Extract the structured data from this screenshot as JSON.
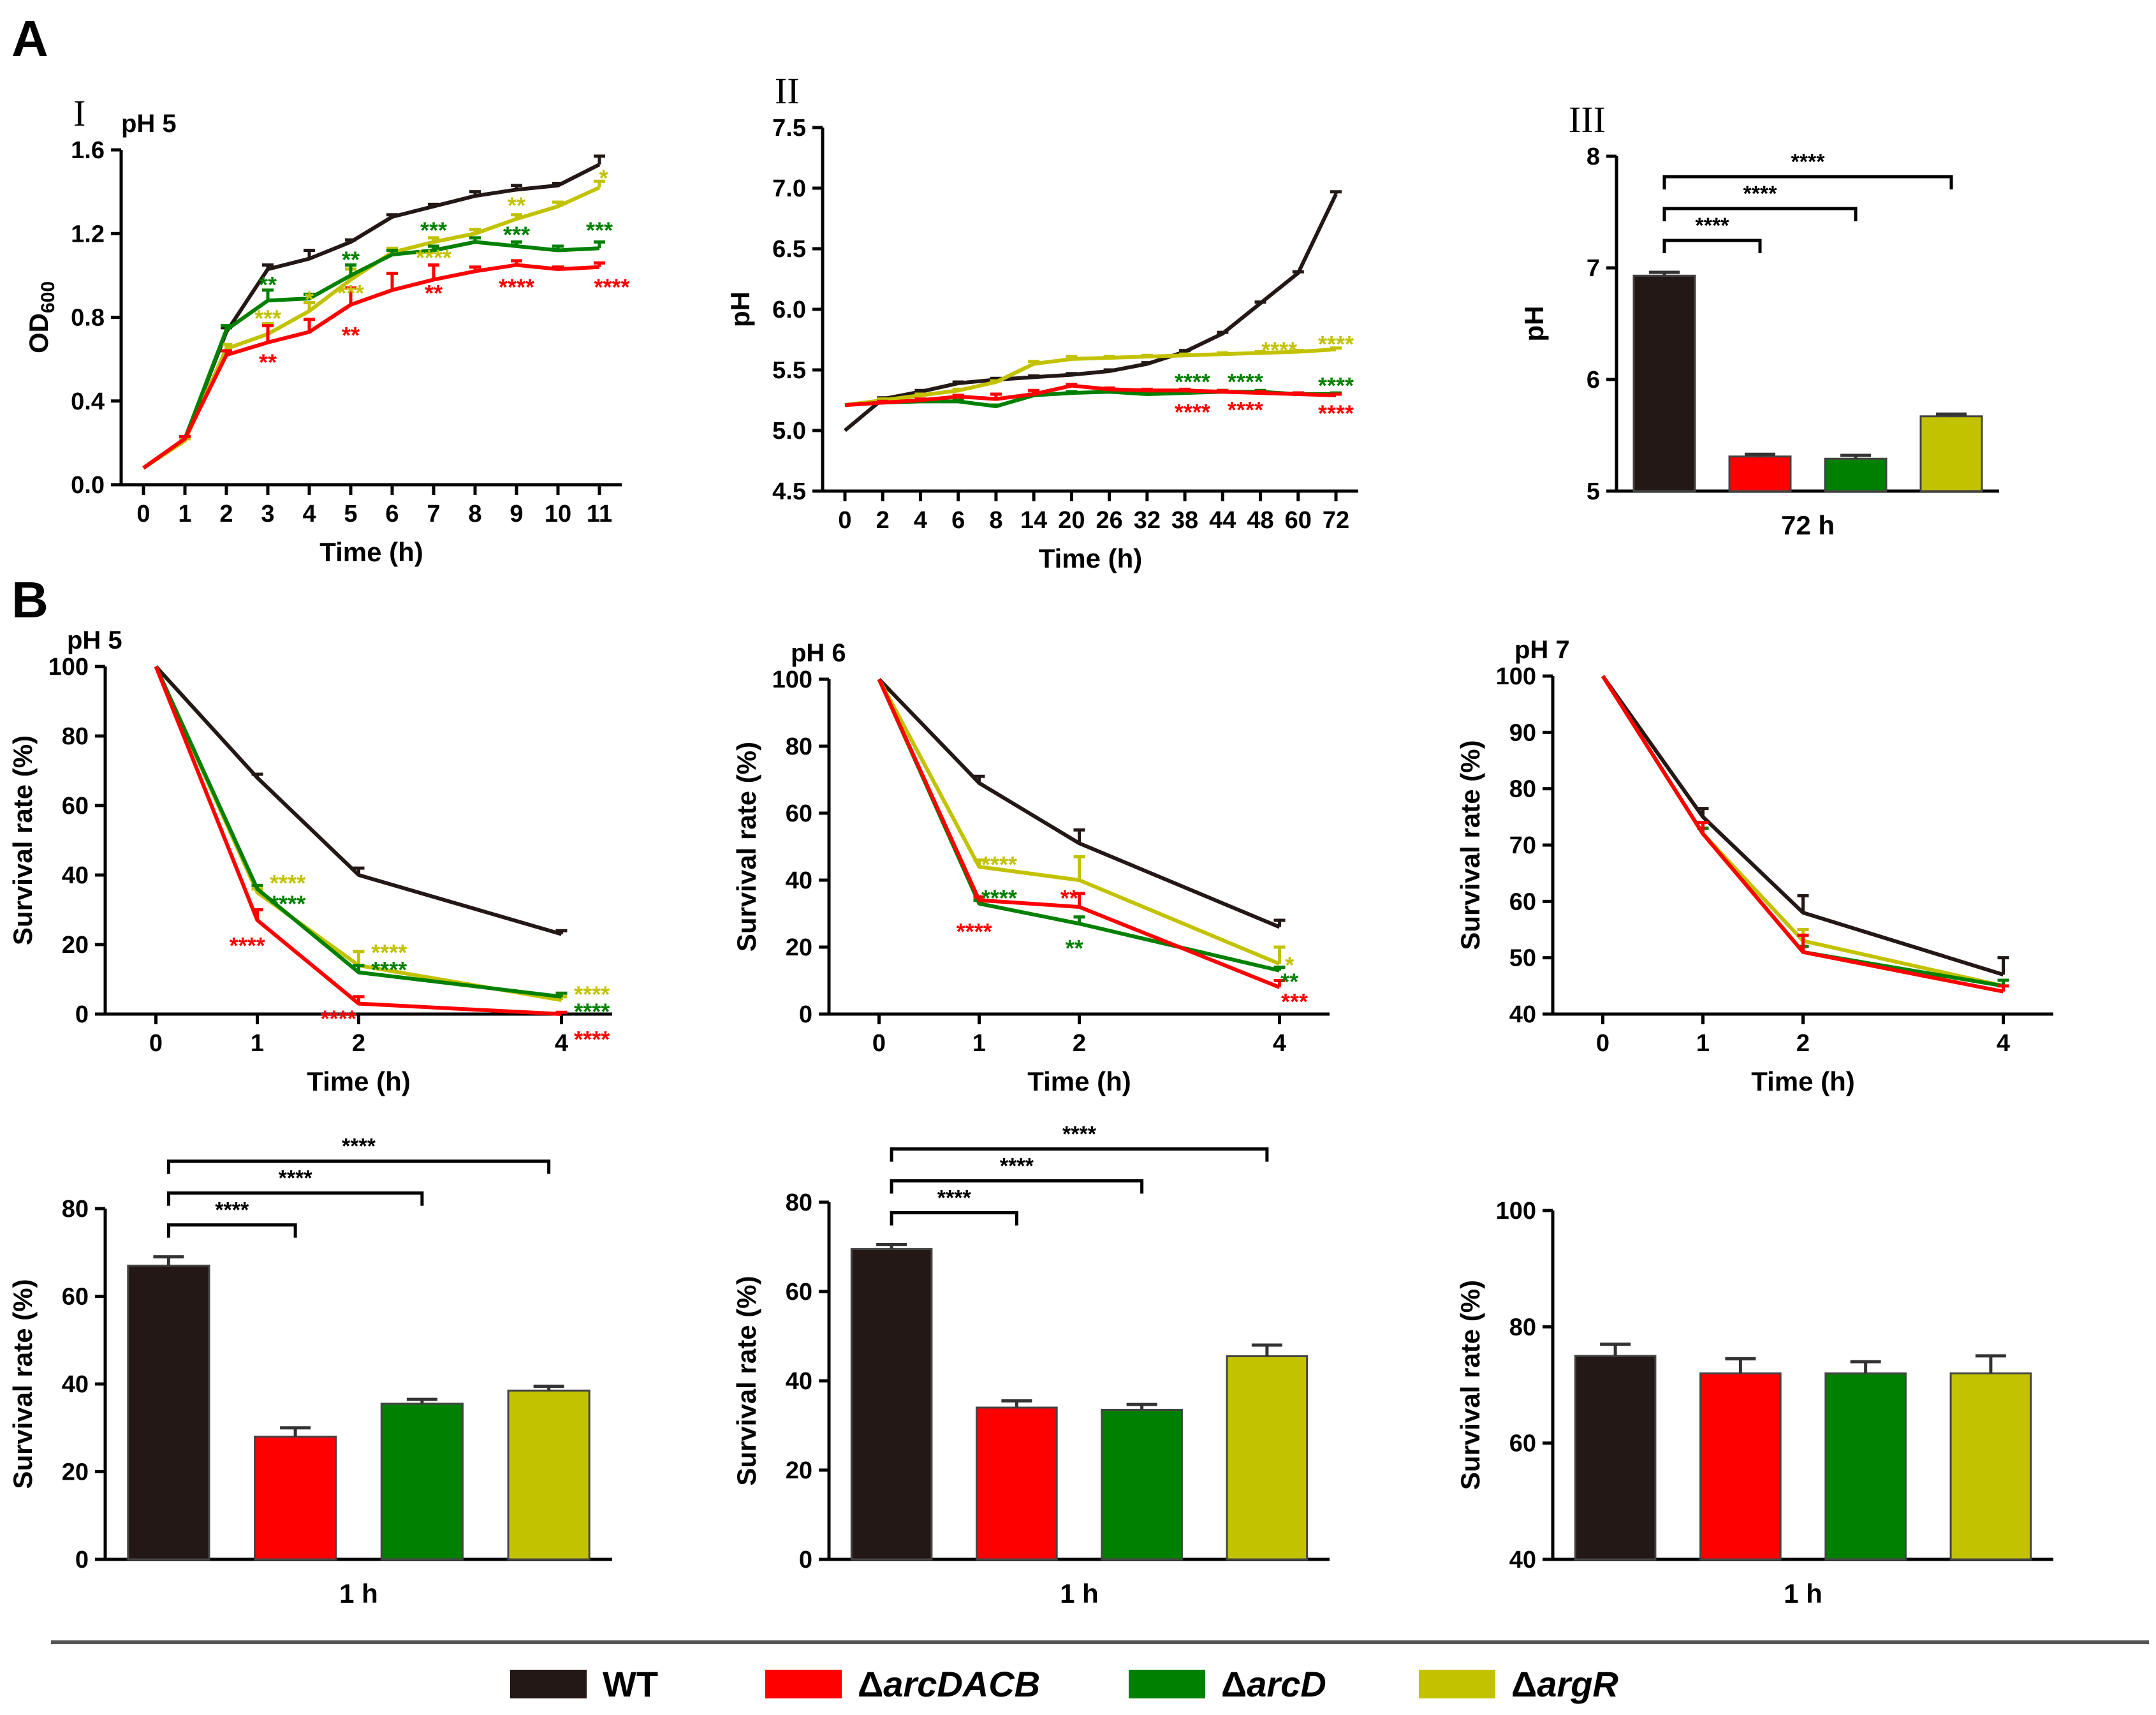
{
  "colors": {
    "WT": "#231815",
    "arcDACB": "#ff0000",
    "arcD": "#008000",
    "argR": "#c2c200"
  },
  "legend": {
    "items": [
      {
        "key": "WT",
        "prefix": "",
        "name": "WT",
        "italic": false
      },
      {
        "key": "arcDACB",
        "prefix": "Δ",
        "name": "arcDACB",
        "italic": true
      },
      {
        "key": "arcD",
        "prefix": "Δ",
        "name": "arcD",
        "italic": true
      },
      {
        "key": "argR",
        "prefix": "Δ",
        "name": "argR",
        "italic": true
      }
    ]
  },
  "panel_labels": {
    "A": "A",
    "B": "B"
  },
  "chart_data": [
    {
      "type": "line",
      "id": "A1",
      "roman": "I",
      "title": "pH 5",
      "xlabel": "Time (h)",
      "ylabel": "OD",
      "ylabel_sub": "600",
      "categories": [
        "0",
        "1",
        "2",
        "3",
        "4",
        "5",
        "6",
        "7",
        "8",
        "9",
        "10",
        "11"
      ],
      "ylim": [
        0,
        1.6
      ],
      "yticks": [
        "0.0",
        "0.4",
        "0.8",
        "1.2",
        "1.6"
      ],
      "series": [
        {
          "name": "WT",
          "values": [
            0.08,
            0.22,
            0.73,
            1.03,
            1.08,
            1.16,
            1.28,
            1.33,
            1.38,
            1.41,
            1.43,
            1.53
          ],
          "err": [
            0,
            0.01,
            0.02,
            0.02,
            0.04,
            0.01,
            0.01,
            0.01,
            0.02,
            0.02,
            0.01,
            0.04
          ]
        },
        {
          "name": "argR",
          "values": [
            0.08,
            0.21,
            0.65,
            0.72,
            0.83,
            0.98,
            1.11,
            1.16,
            1.2,
            1.27,
            1.33,
            1.42
          ],
          "err": [
            0,
            0.01,
            0.02,
            0.05,
            0.04,
            0.05,
            0.02,
            0.02,
            0.02,
            0.02,
            0.02,
            0.03
          ]
        },
        {
          "name": "arcD",
          "values": [
            0.08,
            0.22,
            0.74,
            0.88,
            0.89,
            1.0,
            1.1,
            1.12,
            1.16,
            1.14,
            1.12,
            1.13
          ],
          "err": [
            0,
            0.01,
            0.02,
            0.05,
            0.02,
            0.05,
            0.02,
            0.02,
            0.02,
            0.02,
            0.02,
            0.03
          ]
        },
        {
          "name": "arcDACB",
          "values": [
            0.08,
            0.22,
            0.62,
            0.68,
            0.73,
            0.86,
            0.93,
            0.98,
            1.02,
            1.05,
            1.03,
            1.04
          ],
          "err": [
            0,
            0.01,
            0.02,
            0.08,
            0.06,
            0.08,
            0.08,
            0.07,
            0.02,
            0.02,
            0.01,
            0.02
          ]
        }
      ],
      "annotations": [
        {
          "text": "**",
          "series": "arcD",
          "x": 3,
          "y": 0.96
        },
        {
          "text": "***",
          "series": "argR",
          "x": 3,
          "y": 0.8
        },
        {
          "text": "**",
          "series": "arcDACB",
          "x": 3,
          "y": 0.59
        },
        {
          "text": "*",
          "series": "argR",
          "x": 4,
          "y": 0.89
        },
        {
          "text": "**",
          "series": "arcD",
          "x": 5,
          "y": 1.08
        },
        {
          "text": "***",
          "series": "argR",
          "x": 5,
          "y": 0.92
        },
        {
          "text": "**",
          "series": "arcDACB",
          "x": 5,
          "y": 0.72
        },
        {
          "text": "***",
          "series": "arcD",
          "x": 7,
          "y": 1.22
        },
        {
          "text": "****",
          "series": "argR",
          "x": 7,
          "y": 1.09
        },
        {
          "text": "**",
          "series": "arcDACB",
          "x": 7,
          "y": 0.92
        },
        {
          "text": "**",
          "series": "argR",
          "x": 9,
          "y": 1.34
        },
        {
          "text": "***",
          "series": "arcD",
          "x": 9,
          "y": 1.2
        },
        {
          "text": "****",
          "series": "arcDACB",
          "x": 9,
          "y": 0.95
        },
        {
          "text": "*",
          "series": "argR",
          "x": 11.1,
          "y": 1.47
        },
        {
          "text": "***",
          "series": "arcD",
          "x": 11,
          "y": 1.22
        },
        {
          "text": "****",
          "series": "arcDACB",
          "x": 11.3,
          "y": 0.95
        }
      ]
    },
    {
      "type": "line",
      "id": "A2",
      "roman": "II",
      "title": "",
      "xlabel": "Time (h)",
      "ylabel": "pH",
      "categories": [
        "0",
        "2",
        "4",
        "6",
        "8",
        "14",
        "20",
        "26",
        "32",
        "38",
        "44",
        "48",
        "60",
        "72"
      ],
      "ylim": [
        4.5,
        7.5
      ],
      "yticks": [
        "4.5",
        "5.0",
        "5.5",
        "6.0",
        "6.5",
        "7.0",
        "7.5"
      ],
      "series": [
        {
          "name": "WT",
          "values": [
            5.0,
            5.26,
            5.32,
            5.39,
            5.42,
            5.44,
            5.46,
            5.49,
            5.55,
            5.65,
            5.8,
            6.05,
            6.3,
            6.95
          ],
          "err": [
            0,
            0.01,
            0.01,
            0.01,
            0.01,
            0.01,
            0.01,
            0.01,
            0.01,
            0.01,
            0.01,
            0.01,
            0.01,
            0.02
          ]
        },
        {
          "name": "argR",
          "values": [
            5.21,
            5.25,
            5.29,
            5.33,
            5.4,
            5.55,
            5.59,
            5.6,
            5.61,
            5.62,
            5.63,
            5.64,
            5.65,
            5.67
          ],
          "err": [
            0,
            0.01,
            0.01,
            0.01,
            0.01,
            0.02,
            0.02,
            0.01,
            0.01,
            0.01,
            0.01,
            0.01,
            0.01,
            0.01
          ]
        },
        {
          "name": "arcD",
          "values": [
            5.21,
            5.23,
            5.24,
            5.24,
            5.2,
            5.29,
            5.31,
            5.32,
            5.3,
            5.31,
            5.32,
            5.32,
            5.3,
            5.3
          ],
          "err": [
            0,
            0.01,
            0.01,
            0.01,
            0.01,
            0.01,
            0.01,
            0.01,
            0.01,
            0.01,
            0.01,
            0.01,
            0.01,
            0.01
          ]
        },
        {
          "name": "arcDACB",
          "values": [
            5.21,
            5.23,
            5.25,
            5.28,
            5.26,
            5.3,
            5.37,
            5.34,
            5.33,
            5.33,
            5.32,
            5.31,
            5.3,
            5.29
          ],
          "err": [
            0,
            0.01,
            0.01,
            0.01,
            0.04,
            0.03,
            0.01,
            0.01,
            0.01,
            0.01,
            0.01,
            0.01,
            0.01,
            0.01
          ]
        }
      ],
      "annotations": [
        {
          "text": "****",
          "series": "argR",
          "x": 11.5,
          "y": 5.67
        },
        {
          "text": "****",
          "series": "argR",
          "x": 13,
          "y": 5.72
        },
        {
          "text": "****",
          "series": "arcD",
          "x": 9.2,
          "y": 5.41
        },
        {
          "text": "****",
          "series": "arcD",
          "x": 10.6,
          "y": 5.41
        },
        {
          "text": "****",
          "series": "arcD",
          "x": 13,
          "y": 5.38
        },
        {
          "text": "****",
          "series": "arcDACB",
          "x": 9.2,
          "y": 5.16
        },
        {
          "text": "****",
          "series": "arcDACB",
          "x": 10.6,
          "y": 5.18
        },
        {
          "text": "****",
          "series": "arcDACB",
          "x": 13,
          "y": 5.15
        }
      ]
    },
    {
      "type": "bar",
      "id": "A3",
      "roman": "III",
      "title": "",
      "xlabel": "72 h",
      "ylabel": "pH",
      "ylim": [
        5,
        8
      ],
      "yticks": [
        "5",
        "6",
        "7",
        "8"
      ],
      "series": [
        {
          "name": "WT",
          "value": 6.93,
          "err": 0.03
        },
        {
          "name": "arcDACB",
          "value": 5.31,
          "err": 0.02
        },
        {
          "name": "arcD",
          "value": 5.29,
          "err": 0.03
        },
        {
          "name": "argR",
          "value": 5.67,
          "err": 0.02
        }
      ],
      "brackets": [
        {
          "from": 0,
          "to": 1,
          "text": "****",
          "level": 0
        },
        {
          "from": 0,
          "to": 2,
          "text": "****",
          "level": 1
        },
        {
          "from": 0,
          "to": 3,
          "text": "****",
          "level": 2
        }
      ]
    },
    {
      "type": "line",
      "id": "B1",
      "title": "pH 5",
      "xlabel": "Time (h)",
      "ylabel": "Survival rate (%)",
      "x": [
        0,
        1,
        2,
        4
      ],
      "categories": [
        "0",
        "1",
        "2",
        "4"
      ],
      "ylim": [
        0,
        100
      ],
      "yticks": [
        "0",
        "20",
        "40",
        "60",
        "80",
        "100"
      ],
      "series": [
        {
          "name": "WT",
          "values": [
            100,
            68,
            40,
            23
          ],
          "err": [
            0,
            1,
            2,
            1
          ]
        },
        {
          "name": "argR",
          "values": [
            100,
            35,
            14,
            4
          ],
          "err": [
            0,
            1,
            4,
            1
          ]
        },
        {
          "name": "arcD",
          "values": [
            100,
            36,
            12,
            5
          ],
          "err": [
            0,
            1,
            2,
            1
          ]
        },
        {
          "name": "arcDACB",
          "values": [
            100,
            27,
            3,
            0
          ],
          "err": [
            0,
            3,
            2,
            0.5
          ]
        }
      ],
      "annotations": [
        {
          "text": "****",
          "series": "argR",
          "x": 1.3,
          "y": 38
        },
        {
          "text": "****",
          "series": "arcD",
          "x": 1.3,
          "y": 32
        },
        {
          "text": "****",
          "series": "arcDACB",
          "x": 0.9,
          "y": 20
        },
        {
          "text": "****",
          "series": "argR",
          "x": 2.3,
          "y": 18
        },
        {
          "text": "****",
          "series": "arcD",
          "x": 2.3,
          "y": 13
        },
        {
          "text": "****",
          "series": "arcDACB",
          "x": 1.8,
          "y": -1
        },
        {
          "text": "****",
          "series": "argR",
          "x": 4.3,
          "y": 6
        },
        {
          "text": "****",
          "series": "arcD",
          "x": 4.3,
          "y": 1
        },
        {
          "text": "****",
          "series": "arcDACB",
          "x": 4.3,
          "y": -7
        }
      ]
    },
    {
      "type": "line",
      "id": "B2",
      "title": "pH 6",
      "xlabel": "Time (h)",
      "ylabel": "Survival rate (%)",
      "x": [
        0,
        1,
        2,
        4
      ],
      "categories": [
        "0",
        "1",
        "2",
        "4"
      ],
      "ylim": [
        0,
        100
      ],
      "yticks": [
        "0",
        "20",
        "40",
        "60",
        "80",
        "100"
      ],
      "series": [
        {
          "name": "WT",
          "values": [
            100,
            69,
            51,
            26
          ],
          "err": [
            0,
            2,
            4,
            2
          ]
        },
        {
          "name": "argR",
          "values": [
            100,
            44,
            40,
            15
          ],
          "err": [
            0,
            2,
            7,
            5
          ]
        },
        {
          "name": "arcD",
          "values": [
            100,
            33,
            27,
            13
          ],
          "err": [
            0,
            1,
            2,
            1
          ]
        },
        {
          "name": "arcDACB",
          "values": [
            100,
            34,
            32,
            8
          ],
          "err": [
            0,
            1,
            4,
            2
          ]
        }
      ],
      "annotations": [
        {
          "text": "****",
          "series": "argR",
          "x": 1.2,
          "y": 45
        },
        {
          "text": "****",
          "series": "arcD",
          "x": 1.2,
          "y": 35
        },
        {
          "text": "****",
          "series": "arcDACB",
          "x": 0.95,
          "y": 25
        },
        {
          "text": "**",
          "series": "arcDACB",
          "x": 1.9,
          "y": 35
        },
        {
          "text": "**",
          "series": "arcD",
          "x": 1.95,
          "y": 20
        },
        {
          "text": "*",
          "series": "argR",
          "x": 4.1,
          "y": 15
        },
        {
          "text": "**",
          "series": "arcD",
          "x": 4.1,
          "y": 10
        },
        {
          "text": "***",
          "series": "arcDACB",
          "x": 4.15,
          "y": 4
        }
      ]
    },
    {
      "type": "line",
      "id": "B3",
      "title": "pH 7",
      "xlabel": "Time (h)",
      "ylabel": "Survival rate (%)",
      "x": [
        0,
        1,
        2,
        4
      ],
      "categories": [
        "0",
        "1",
        "2",
        "4"
      ],
      "ylim": [
        40,
        100
      ],
      "yticks": [
        "40",
        "50",
        "60",
        "70",
        "80",
        "90",
        "100"
      ],
      "series": [
        {
          "name": "WT",
          "values": [
            100,
            75,
            58,
            47
          ],
          "err": [
            0,
            1.5,
            3,
            3
          ]
        },
        {
          "name": "argR",
          "values": [
            100,
            72,
            53,
            45
          ],
          "err": [
            0,
            1,
            2,
            1
          ]
        },
        {
          "name": "arcD",
          "values": [
            100,
            72,
            51,
            45
          ],
          "err": [
            0,
            1,
            1,
            1
          ]
        },
        {
          "name": "arcDACB",
          "values": [
            100,
            72,
            51,
            44
          ],
          "err": [
            0,
            2,
            3,
            1
          ]
        }
      ],
      "annotations": []
    },
    {
      "type": "bar",
      "id": "B4",
      "title": "",
      "xlabel": "1 h",
      "ylabel": "Survival rate (%)",
      "ylim": [
        0,
        80
      ],
      "yticks": [
        "0",
        "20",
        "40",
        "60",
        "80"
      ],
      "series": [
        {
          "name": "WT",
          "value": 67,
          "err": 2
        },
        {
          "name": "arcDACB",
          "value": 28,
          "err": 2
        },
        {
          "name": "arcD",
          "value": 35.5,
          "err": 1
        },
        {
          "name": "argR",
          "value": 38.5,
          "err": 1
        }
      ],
      "brackets": [
        {
          "from": 0,
          "to": 1,
          "text": "****",
          "level": 0
        },
        {
          "from": 0,
          "to": 2,
          "text": "****",
          "level": 1
        },
        {
          "from": 0,
          "to": 3,
          "text": "****",
          "level": 2
        }
      ]
    },
    {
      "type": "bar",
      "id": "B5",
      "title": "",
      "xlabel": "1 h",
      "ylabel": "Survival rate (%)",
      "ylim": [
        0,
        80
      ],
      "yticks": [
        "0",
        "20",
        "40",
        "60",
        "80"
      ],
      "series": [
        {
          "name": "WT",
          "value": 69.5,
          "err": 1
        },
        {
          "name": "arcDACB",
          "value": 34,
          "err": 1.5
        },
        {
          "name": "arcD",
          "value": 33.5,
          "err": 1.2
        },
        {
          "name": "argR",
          "value": 45.5,
          "err": 2.5
        }
      ],
      "brackets": [
        {
          "from": 0,
          "to": 1,
          "text": "****",
          "level": 0
        },
        {
          "from": 0,
          "to": 2,
          "text": "****",
          "level": 1
        },
        {
          "from": 0,
          "to": 3,
          "text": "****",
          "level": 2
        }
      ]
    },
    {
      "type": "bar",
      "id": "B6",
      "title": "",
      "xlabel": "1 h",
      "ylabel": "Survival rate (%)",
      "ylim": [
        40,
        100
      ],
      "yticks": [
        "40",
        "60",
        "80",
        "100"
      ],
      "series": [
        {
          "name": "WT",
          "value": 75,
          "err": 2
        },
        {
          "name": "arcDACB",
          "value": 72,
          "err": 2.5
        },
        {
          "name": "arcD",
          "value": 72,
          "err": 2
        },
        {
          "name": "argR",
          "value": 72,
          "err": 3
        }
      ],
      "brackets": []
    }
  ]
}
